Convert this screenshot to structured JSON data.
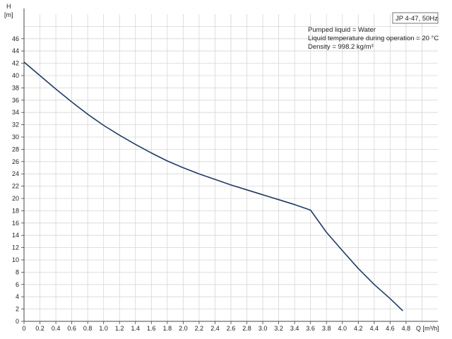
{
  "chart_data": {
    "type": "line",
    "legend": "JP 4-47, 50Hz",
    "info_lines": [
      "Pumped liquid = Water",
      "Liquid temperature during operation = 20 °C",
      "Density = 998.2 kg/m³"
    ],
    "y_axis_title": "H",
    "y_axis_unit": "[m]",
    "x_axis_title": "Q [m³/h]",
    "xlim": [
      0,
      5.2
    ],
    "ylim": [
      0,
      50
    ],
    "x_ticks": [
      "0",
      "0.2",
      "0.4",
      "0.6",
      "0.8",
      "1.0",
      "1.2",
      "1.4",
      "1.6",
      "1.8",
      "2.0",
      "2.2",
      "2.4",
      "2.6",
      "2.8",
      "3.0",
      "3.2",
      "3.4",
      "3.6",
      "3.8",
      "4.0",
      "4.2",
      "4.4",
      "4.6",
      "4.8"
    ],
    "y_ticks": [
      "0",
      "2",
      "4",
      "6",
      "8",
      "10",
      "12",
      "14",
      "16",
      "18",
      "20",
      "22",
      "24",
      "26",
      "28",
      "30",
      "32",
      "34",
      "36",
      "38",
      "40",
      "42",
      "44",
      "46"
    ],
    "grid": true,
    "series": [
      {
        "color": "#1f3b63",
        "x": [
          0,
          0.2,
          0.4,
          0.6,
          0.8,
          1.0,
          1.2,
          1.4,
          1.6,
          1.8,
          2.0,
          2.2,
          2.4,
          2.6,
          2.8,
          3.0,
          3.2,
          3.4,
          3.6,
          3.8,
          4.0,
          4.2,
          4.4,
          4.6,
          4.76
        ],
        "y": [
          42.2,
          40.0,
          37.8,
          35.7,
          33.7,
          31.9,
          30.3,
          28.8,
          27.4,
          26.1,
          25.0,
          24.0,
          23.1,
          22.2,
          21.4,
          20.6,
          19.8,
          19.0,
          18.1,
          14.5,
          11.5,
          8.6,
          6.0,
          3.7,
          1.7
        ]
      }
    ]
  }
}
